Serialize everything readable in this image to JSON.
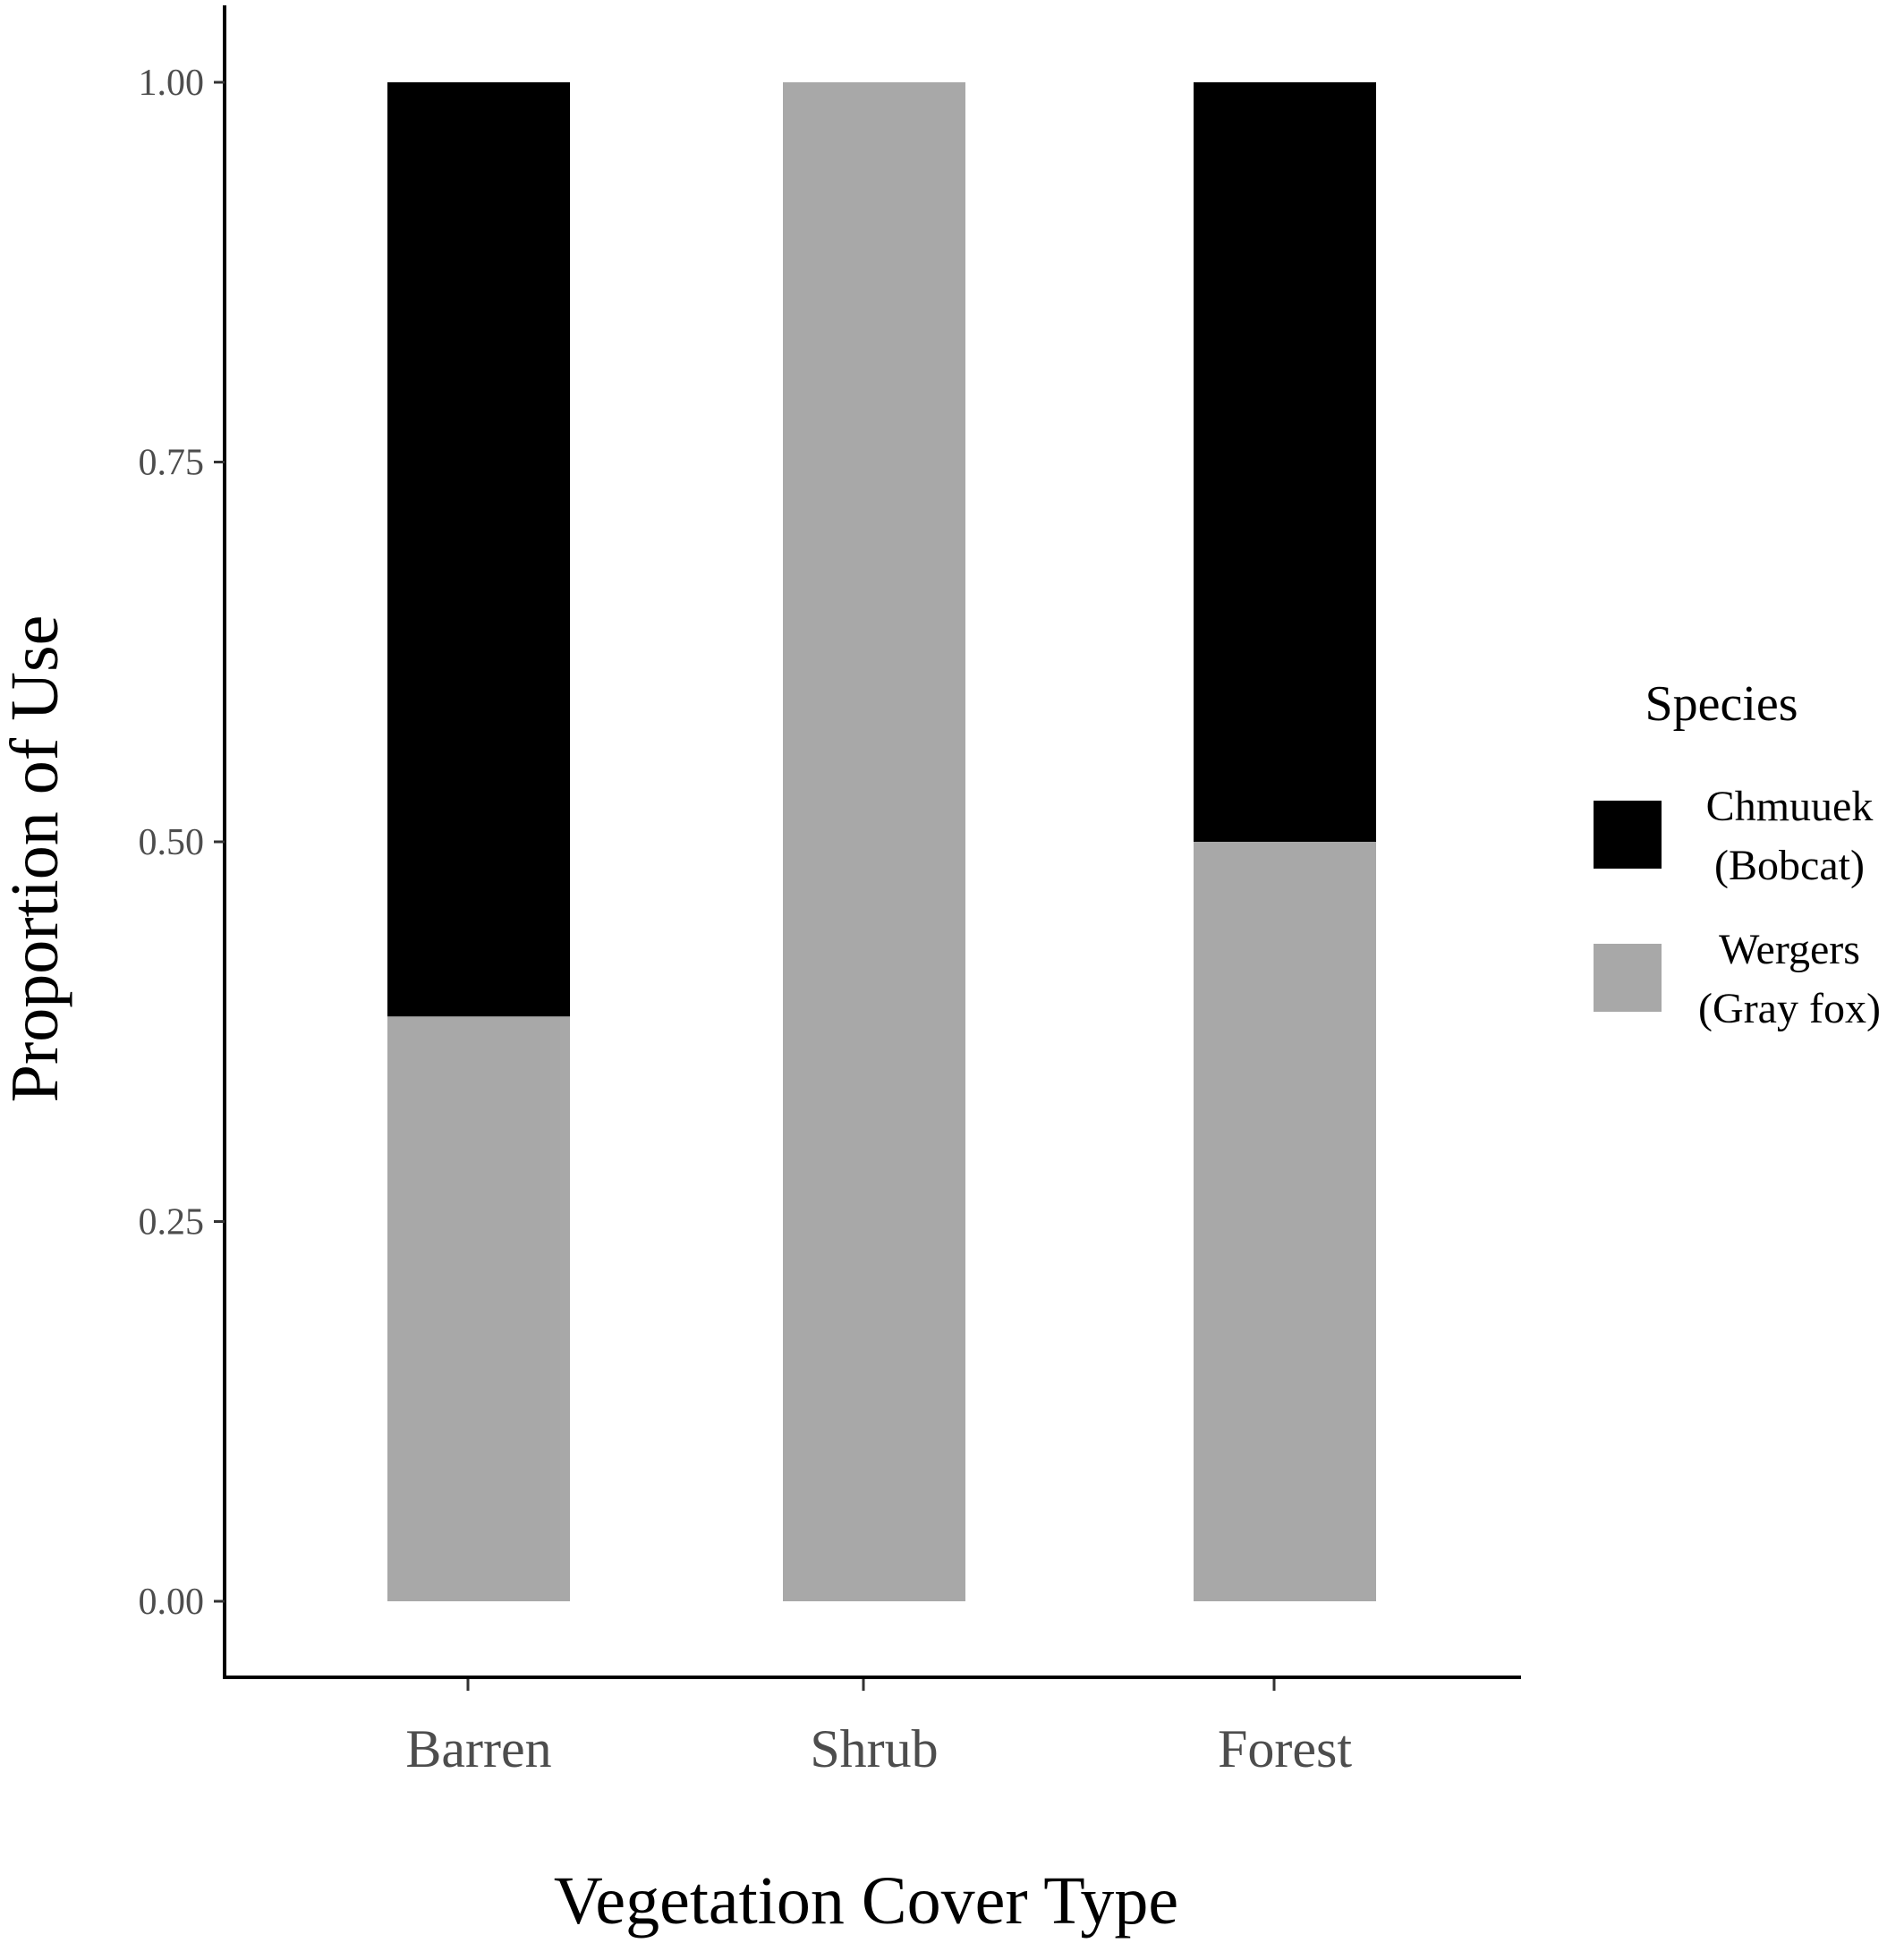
{
  "chart_data": {
    "type": "bar",
    "stacked": true,
    "categories": [
      "Barren",
      "Shrub",
      "Forest"
    ],
    "series": [
      {
        "name": "Wergers (Gray fox)",
        "label_lines": [
          "Wergers",
          "(Gray fox)"
        ],
        "color": "#a8a8a8",
        "values": [
          0.385,
          1.0,
          0.5
        ]
      },
      {
        "name": "Chmuuek (Bobcat)",
        "label_lines": [
          "Chmuuek",
          "(Bobcat)"
        ],
        "color": "#000000",
        "values": [
          0.615,
          0.0,
          0.5
        ]
      }
    ],
    "xlabel": "Vegetation Cover Type",
    "ylabel": "Proportion of Use",
    "ylim": [
      -0.05,
      1.05
    ],
    "yticks": [
      0.0,
      0.25,
      0.5,
      0.75,
      1.0
    ],
    "ytick_labels": [
      "0.00",
      "0.25",
      "0.50",
      "0.75",
      "1.00"
    ],
    "legend_title": "Species",
    "legend_position": "right",
    "legend_order": [
      "Chmuuek (Bobcat)",
      "Wergers (Gray fox)"
    ],
    "grid": false
  }
}
